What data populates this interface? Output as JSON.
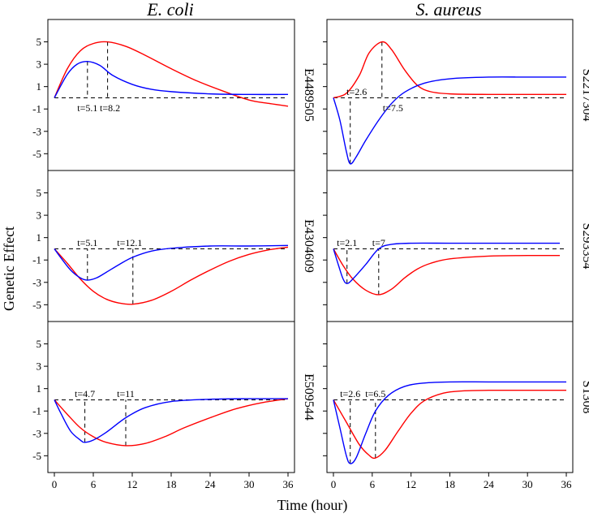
{
  "figure": {
    "xlabel": "Time (hour)",
    "ylabel": "Genetic Effect",
    "columns": [
      "E. coli",
      "S. aureus"
    ]
  },
  "chart_data": {
    "type": "line",
    "xlim": [
      -1,
      37
    ],
    "ylim": [
      -6.5,
      7
    ],
    "x_ticks": [
      0,
      6,
      12,
      18,
      24,
      30,
      36
    ],
    "y_ticks": [
      5,
      3,
      1,
      -1,
      -3,
      -5
    ],
    "grid": false,
    "panels": [
      {
        "column": "E. coli",
        "row": 1,
        "gene": "E4489505",
        "series": [
          {
            "name": "red",
            "color": "#ff0000",
            "x_end": 36,
            "points": [
              [
                0,
                0
              ],
              [
                2,
                2.6
              ],
              [
                4,
                4.2
              ],
              [
                6,
                4.85
              ],
              [
                8.2,
                5.0
              ],
              [
                11,
                4.6
              ],
              [
                14,
                3.8
              ],
              [
                18,
                2.6
              ],
              [
                22,
                1.5
              ],
              [
                26,
                0.6
              ],
              [
                30,
                -0.2
              ],
              [
                33,
                -0.5
              ],
              [
                36,
                -0.75
              ]
            ]
          },
          {
            "name": "blue",
            "color": "#0000ff",
            "x_end": 36,
            "points": [
              [
                0,
                0
              ],
              [
                2,
                2.1
              ],
              [
                3.5,
                3.0
              ],
              [
                5.1,
                3.25
              ],
              [
                7,
                2.9
              ],
              [
                9,
                2.0
              ],
              [
                12,
                1.2
              ],
              [
                15,
                0.75
              ],
              [
                18,
                0.55
              ],
              [
                24,
                0.35
              ],
              [
                30,
                0.3
              ],
              [
                36,
                0.3
              ]
            ]
          }
        ],
        "baseline": 0,
        "markers": [
          {
            "x": 5.1,
            "y": 3.25,
            "label": "t=5.1",
            "label_y": -0.9,
            "anchor": "middle",
            "dx": 0
          },
          {
            "x": 8.2,
            "y": 5.0,
            "label": "t=8.2",
            "label_y": -0.9,
            "anchor": "middle",
            "dx": 3
          }
        ]
      },
      {
        "column": "S. aureus",
        "row": 1,
        "gene": "S2217304",
        "series": [
          {
            "name": "red",
            "color": "#ff0000",
            "x_end": 36,
            "points": [
              [
                0,
                0
              ],
              [
                2,
                0.4
              ],
              [
                4,
                2.0
              ],
              [
                5.5,
                4.0
              ],
              [
                7.5,
                5.0
              ],
              [
                9,
                4.3
              ],
              [
                11,
                2.5
              ],
              [
                13,
                1.1
              ],
              [
                15,
                0.55
              ],
              [
                18,
                0.35
              ],
              [
                24,
                0.3
              ],
              [
                30,
                0.3
              ],
              [
                36,
                0.3
              ]
            ]
          },
          {
            "name": "blue",
            "color": "#0000ff",
            "x_end": 36,
            "points": [
              [
                0,
                0
              ],
              [
                1,
                -2.0
              ],
              [
                2,
                -4.8
              ],
              [
                2.6,
                -5.9
              ],
              [
                3.5,
                -5.3
              ],
              [
                5,
                -3.8
              ],
              [
                7,
                -2.0
              ],
              [
                9,
                -0.5
              ],
              [
                11,
                0.5
              ],
              [
                14,
                1.3
              ],
              [
                18,
                1.7
              ],
              [
                24,
                1.85
              ],
              [
                30,
                1.85
              ],
              [
                36,
                1.85
              ]
            ]
          }
        ],
        "baseline": 0,
        "markers": [
          {
            "x": 2.6,
            "y": -5.9,
            "label": "t=2.6",
            "label_y": 0.55,
            "anchor": "middle",
            "dx": 8
          },
          {
            "x": 7.5,
            "y": 5.0,
            "label": "t=7.5",
            "label_y": -0.9,
            "anchor": "start",
            "dx": 1
          }
        ]
      },
      {
        "column": "E. coli",
        "row": 2,
        "gene": "E4304609",
        "series": [
          {
            "name": "red",
            "color": "#ff0000",
            "x_end": 36,
            "points": [
              [
                0,
                0
              ],
              [
                2,
                -1.3
              ],
              [
                4,
                -2.7
              ],
              [
                6,
                -3.8
              ],
              [
                8,
                -4.5
              ],
              [
                10,
                -4.85
              ],
              [
                12.1,
                -4.95
              ],
              [
                15,
                -4.6
              ],
              [
                18,
                -3.8
              ],
              [
                21,
                -2.8
              ],
              [
                24,
                -1.9
              ],
              [
                27,
                -1.1
              ],
              [
                30,
                -0.5
              ],
              [
                33,
                -0.1
              ],
              [
                36,
                0.15
              ]
            ]
          },
          {
            "name": "blue",
            "color": "#0000ff",
            "x_end": 36,
            "points": [
              [
                0,
                0
              ],
              [
                1,
                -0.8
              ],
              [
                2.5,
                -1.9
              ],
              [
                4,
                -2.6
              ],
              [
                5.1,
                -2.8
              ],
              [
                6.5,
                -2.6
              ],
              [
                8,
                -2.1
              ],
              [
                10,
                -1.4
              ],
              [
                12.1,
                -0.75
              ],
              [
                15,
                -0.2
              ],
              [
                18,
                0.05
              ],
              [
                24,
                0.25
              ],
              [
                30,
                0.25
              ],
              [
                36,
                0.3
              ]
            ]
          }
        ],
        "baseline": 0,
        "markers": [
          {
            "x": 5.1,
            "y": -2.8,
            "label": "t=5.1",
            "label_y": 0.55,
            "anchor": "middle",
            "dx": 0
          },
          {
            "x": 12.1,
            "y": -4.95,
            "label": "t=12.1",
            "label_y": 0.55,
            "anchor": "middle",
            "dx": -4
          }
        ]
      },
      {
        "column": "S. aureus",
        "row": 2,
        "gene": "S293354",
        "series": [
          {
            "name": "red",
            "color": "#ff0000",
            "x_end": 35,
            "points": [
              [
                0,
                0
              ],
              [
                1.5,
                -1.5
              ],
              [
                3,
                -2.7
              ],
              [
                5,
                -3.7
              ],
              [
                7,
                -4.1
              ],
              [
                9,
                -3.6
              ],
              [
                11,
                -2.6
              ],
              [
                13,
                -1.8
              ],
              [
                15,
                -1.3
              ],
              [
                18,
                -0.9
              ],
              [
                24,
                -0.65
              ],
              [
                30,
                -0.6
              ],
              [
                35,
                -0.6
              ]
            ]
          },
          {
            "name": "blue",
            "color": "#0000ff",
            "x_end": 35,
            "points": [
              [
                0,
                0
              ],
              [
                0.8,
                -1.5
              ],
              [
                1.5,
                -2.7
              ],
              [
                2.1,
                -3.1
              ],
              [
                3,
                -2.7
              ],
              [
                5,
                -1.4
              ],
              [
                7,
                0
              ],
              [
                9,
                0.4
              ],
              [
                12,
                0.5
              ],
              [
                18,
                0.5
              ],
              [
                24,
                0.5
              ],
              [
                30,
                0.5
              ],
              [
                35,
                0.5
              ]
            ]
          }
        ],
        "baseline": 0,
        "markers": [
          {
            "x": 2.1,
            "y": -3.1,
            "label": "t=2.1",
            "label_y": 0.55,
            "anchor": "middle",
            "dx": 0
          },
          {
            "x": 7,
            "y": -4.1,
            "label": "t=7",
            "label_y": 0.55,
            "anchor": "middle",
            "dx": 0
          }
        ]
      },
      {
        "column": "E. coli",
        "row": 3,
        "gene": "E509544",
        "series": [
          {
            "name": "red",
            "color": "#ff0000",
            "x_end": 36,
            "points": [
              [
                0,
                0
              ],
              [
                2,
                -1.3
              ],
              [
                4,
                -2.5
              ],
              [
                6,
                -3.3
              ],
              [
                8,
                -3.8
              ],
              [
                11,
                -4.1
              ],
              [
                14,
                -3.9
              ],
              [
                17,
                -3.3
              ],
              [
                20,
                -2.5
              ],
              [
                24,
                -1.6
              ],
              [
                28,
                -0.8
              ],
              [
                32,
                -0.25
              ],
              [
                36,
                0.1
              ]
            ]
          },
          {
            "name": "blue",
            "color": "#0000ff",
            "x_end": 36,
            "points": [
              [
                0,
                0
              ],
              [
                1,
                -1.2
              ],
              [
                2.5,
                -2.8
              ],
              [
                4,
                -3.6
              ],
              [
                4.7,
                -3.8
              ],
              [
                6,
                -3.6
              ],
              [
                8,
                -2.9
              ],
              [
                11,
                -1.6
              ],
              [
                14,
                -0.7
              ],
              [
                18,
                -0.15
              ],
              [
                24,
                0.05
              ],
              [
                30,
                0.1
              ],
              [
                36,
                0.1
              ]
            ]
          }
        ],
        "baseline": 0,
        "markers": [
          {
            "x": 4.7,
            "y": -3.8,
            "label": "t=4.7",
            "label_y": 0.55,
            "anchor": "middle",
            "dx": 0
          },
          {
            "x": 11,
            "y": -4.1,
            "label": "t=11",
            "label_y": 0.55,
            "anchor": "middle",
            "dx": 0
          }
        ]
      },
      {
        "column": "S. aureus",
        "row": 3,
        "gene": "S1308",
        "series": [
          {
            "name": "red",
            "color": "#ff0000",
            "x_end": 36,
            "points": [
              [
                0,
                0
              ],
              [
                2,
                -2.0
              ],
              [
                4,
                -4.0
              ],
              [
                5.5,
                -4.95
              ],
              [
                6.5,
                -5.2
              ],
              [
                8,
                -4.5
              ],
              [
                10,
                -2.8
              ],
              [
                12,
                -1.2
              ],
              [
                14,
                -0.1
              ],
              [
                17,
                0.6
              ],
              [
                20,
                0.8
              ],
              [
                24,
                0.85
              ],
              [
                30,
                0.85
              ],
              [
                36,
                0.85
              ]
            ]
          },
          {
            "name": "blue",
            "color": "#0000ff",
            "x_end": 36,
            "points": [
              [
                0,
                0
              ],
              [
                1,
                -2.5
              ],
              [
                2,
                -5.0
              ],
              [
                2.6,
                -5.7
              ],
              [
                3.5,
                -5.2
              ],
              [
                5,
                -3.0
              ],
              [
                6.5,
                -1.0
              ],
              [
                8.5,
                0.4
              ],
              [
                11,
                1.2
              ],
              [
                14,
                1.5
              ],
              [
                18,
                1.6
              ],
              [
                24,
                1.6
              ],
              [
                30,
                1.6
              ],
              [
                36,
                1.6
              ]
            ]
          }
        ],
        "baseline": 0,
        "markers": [
          {
            "x": 2.6,
            "y": -5.7,
            "label": "t=2.6",
            "label_y": 0.55,
            "anchor": "middle",
            "dx": 0
          },
          {
            "x": 6.5,
            "y": -5.2,
            "label": "t=6.5",
            "label_y": 0.55,
            "anchor": "middle",
            "dx": 0
          }
        ]
      }
    ]
  }
}
